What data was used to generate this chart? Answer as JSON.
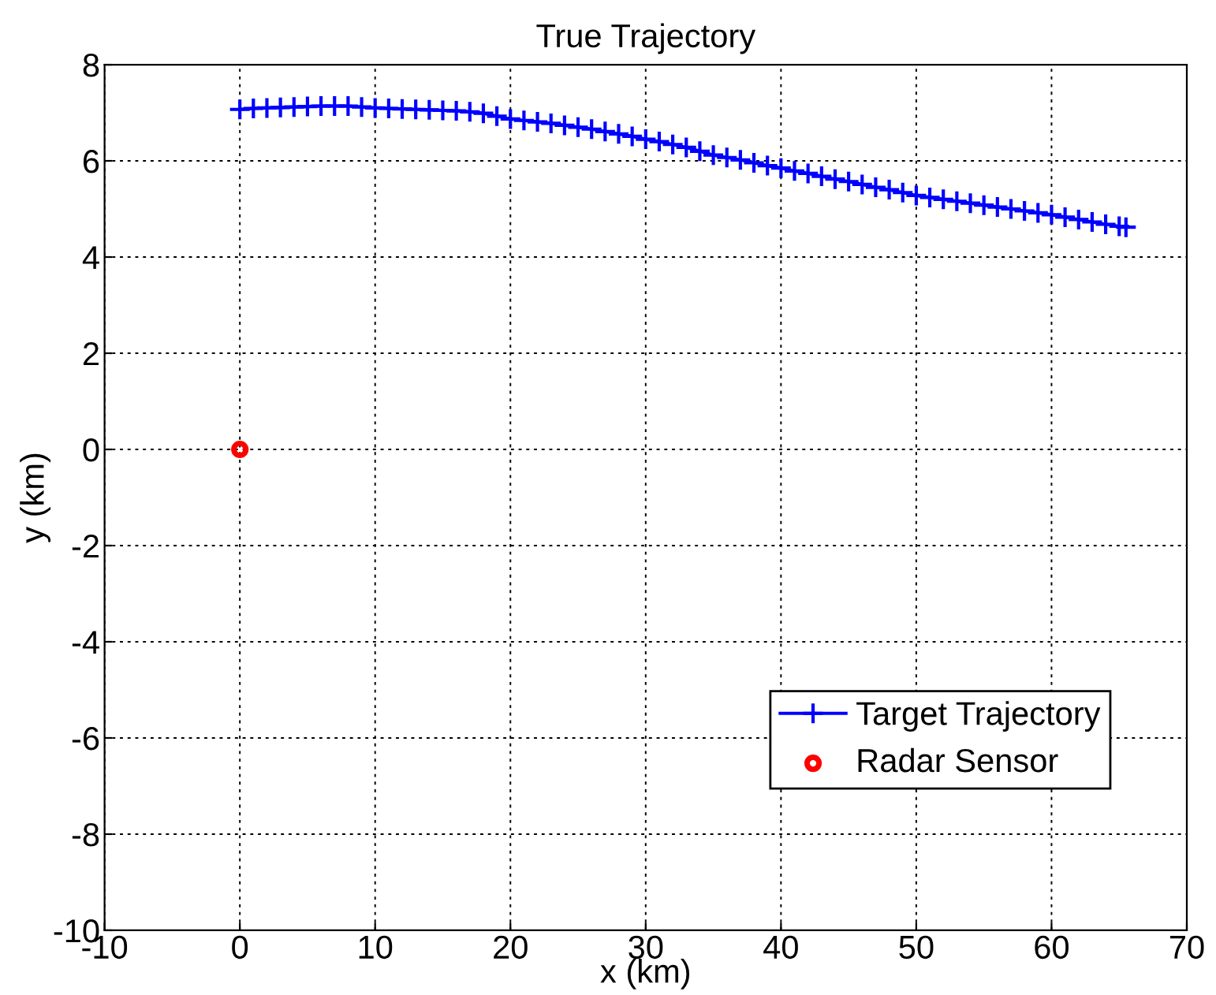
{
  "chart_data": {
    "type": "line",
    "title": "True Trajectory",
    "xlabel": "x (km)",
    "ylabel": "y (km)",
    "xlim": [
      -10,
      70
    ],
    "xticks": [
      -10,
      0,
      10,
      20,
      30,
      40,
      50,
      60,
      70
    ],
    "ylim": [
      -10,
      8
    ],
    "yticks": [
      -10,
      -8,
      -6,
      -4,
      -2,
      0,
      2,
      4,
      6,
      8
    ],
    "grid": true,
    "legend": "bottom right",
    "series": [
      {
        "name": "Target Trajectory",
        "color": "#0000ff",
        "marker": "cross",
        "line_style": "solid",
        "x": [
          0,
          1,
          2,
          3,
          4,
          5,
          6,
          7,
          8,
          9,
          10,
          11,
          12,
          13,
          14,
          15,
          16,
          17,
          18,
          19,
          20,
          21,
          22,
          23,
          24,
          25,
          26,
          27,
          28,
          29,
          30,
          31,
          32,
          33,
          34,
          35,
          36,
          37,
          38,
          39,
          40,
          41,
          42,
          43,
          44,
          45,
          46,
          47,
          48,
          49,
          50,
          51,
          52,
          53,
          54,
          55,
          56,
          57,
          58,
          59,
          60,
          61,
          62,
          63,
          64,
          65,
          65.5
        ],
        "values": [
          7.07,
          7.09,
          7.1,
          7.11,
          7.12,
          7.13,
          7.14,
          7.14,
          7.14,
          7.12,
          7.1,
          7.09,
          7.08,
          7.07,
          7.06,
          7.05,
          7.04,
          7.02,
          6.99,
          6.93,
          6.87,
          6.84,
          6.81,
          6.78,
          6.74,
          6.7,
          6.66,
          6.61,
          6.56,
          6.51,
          6.45,
          6.4,
          6.34,
          6.28,
          6.2,
          6.12,
          6.07,
          6.02,
          5.96,
          5.9,
          5.85,
          5.79,
          5.74,
          5.68,
          5.62,
          5.57,
          5.51,
          5.45,
          5.4,
          5.34,
          5.28,
          5.24,
          5.2,
          5.16,
          5.12,
          5.08,
          5.04,
          5.0,
          4.96,
          4.92,
          4.88,
          4.83,
          4.78,
          4.73,
          4.68,
          4.64,
          4.62
        ]
      },
      {
        "name": "Radar Sensor",
        "type": "scatter",
        "color": "#ff0000",
        "marker": "circle",
        "x": [
          0
        ],
        "values": [
          0
        ]
      }
    ]
  }
}
